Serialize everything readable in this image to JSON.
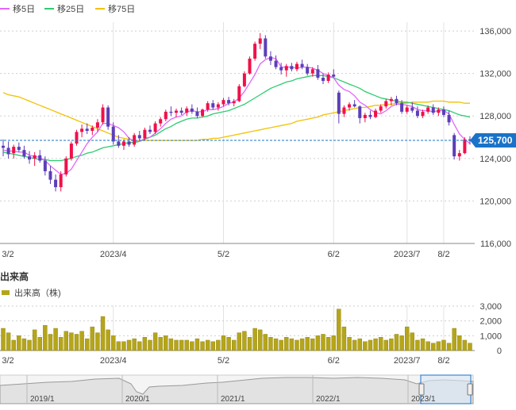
{
  "legend": {
    "items": [
      {
        "label": "移5日",
        "color": "#e066ff"
      },
      {
        "label": "移25日",
        "color": "#2ecc71"
      },
      {
        "label": "移75日",
        "color": "#f2c200"
      }
    ]
  },
  "colors": {
    "up": "#f0104a",
    "down": "#5b3fb8",
    "ma5": "#e066ff",
    "ma25": "#2ecc71",
    "ma75": "#f2c200",
    "volume": "#b5a51a",
    "last_price_tag": "#1a73c8",
    "navigator_line": "#888888",
    "navigator_selection": "#1a73c8"
  },
  "volume_section": {
    "title": "出来高",
    "legend_label": "出来高（株)"
  },
  "navigator": {
    "labels": [
      "2019/1",
      "2020/1",
      "2021/1",
      "2022/1",
      "2023/1"
    ]
  },
  "chart_data": [
    {
      "type": "candlestick",
      "price_axis_ticks": [
        "116,000",
        "120,000",
        "124,000",
        "128,000",
        "132,000",
        "136,000"
      ],
      "ylim": [
        116000,
        137200
      ],
      "x_tick_labels": [
        "3/2",
        "2023/4",
        "5/2",
        "6/2",
        "2023/7",
        "8/2"
      ],
      "last_price": 125700,
      "last_price_label": "125,700",
      "candles": [
        [
          125200,
          125800,
          124200,
          125000
        ],
        [
          125000,
          125600,
          124000,
          124400
        ],
        [
          124500,
          125300,
          124000,
          125100
        ],
        [
          125100,
          125500,
          124600,
          124800
        ],
        [
          124800,
          125200,
          124000,
          124200
        ],
        [
          124200,
          124700,
          123500,
          123900
        ],
        [
          124000,
          124600,
          123300,
          124300
        ],
        [
          124300,
          124800,
          123600,
          123800
        ],
        [
          123800,
          124200,
          122400,
          122800
        ],
        [
          122800,
          123300,
          121600,
          122000
        ],
        [
          122000,
          122500,
          120900,
          121300
        ],
        [
          121300,
          122800,
          120900,
          122500
        ],
        [
          122500,
          124200,
          122300,
          124000
        ],
        [
          124000,
          125600,
          123800,
          125400
        ],
        [
          125400,
          126700,
          125200,
          126500
        ],
        [
          126500,
          127200,
          126000,
          126800
        ],
        [
          126800,
          127300,
          126300,
          126600
        ],
        [
          126600,
          127100,
          126200,
          126900
        ],
        [
          126900,
          127700,
          126500,
          127400
        ],
        [
          127400,
          129100,
          127200,
          128800
        ],
        [
          128800,
          129000,
          126700,
          127000
        ],
        [
          127000,
          127400,
          125300,
          125600
        ],
        [
          125600,
          126200,
          125000,
          125200
        ],
        [
          125200,
          125800,
          124800,
          125600
        ],
        [
          125600,
          126000,
          125100,
          125300
        ],
        [
          125300,
          126400,
          125100,
          126200
        ],
        [
          126200,
          126600,
          125700,
          125900
        ],
        [
          125900,
          126900,
          125700,
          126700
        ],
        [
          126700,
          127100,
          126300,
          126500
        ],
        [
          126500,
          127500,
          126300,
          127300
        ],
        [
          127300,
          127900,
          127000,
          127700
        ],
        [
          127700,
          128600,
          127500,
          128400
        ],
        [
          128400,
          128900,
          128000,
          128300
        ],
        [
          128300,
          128700,
          127900,
          128500
        ],
        [
          128500,
          128800,
          128100,
          128300
        ],
        [
          128300,
          128900,
          128000,
          128700
        ],
        [
          128700,
          129100,
          128200,
          128400
        ],
        [
          128400,
          128800,
          127800,
          128000
        ],
        [
          128000,
          128700,
          127900,
          128600
        ],
        [
          128600,
          129400,
          128400,
          129200
        ],
        [
          129200,
          129500,
          128600,
          128800
        ],
        [
          128800,
          129300,
          128500,
          129100
        ],
        [
          129100,
          129700,
          128900,
          129500
        ],
        [
          129500,
          129800,
          129000,
          129200
        ],
        [
          129200,
          129600,
          128900,
          129400
        ],
        [
          129400,
          131000,
          129300,
          130800
        ],
        [
          130800,
          132200,
          130700,
          132000
        ],
        [
          132000,
          133600,
          131900,
          133400
        ],
        [
          133400,
          135000,
          133200,
          134800
        ],
        [
          134800,
          135800,
          134300,
          135300
        ],
        [
          135300,
          135600,
          133400,
          133600
        ],
        [
          133600,
          134100,
          132800,
          133200
        ],
        [
          133200,
          133700,
          132400,
          132600
        ],
        [
          132600,
          133000,
          131900,
          132300
        ],
        [
          132300,
          132900,
          131700,
          132700
        ],
        [
          132700,
          133000,
          132200,
          132400
        ],
        [
          132400,
          133100,
          132200,
          132900
        ],
        [
          132900,
          133300,
          132400,
          132600
        ],
        [
          132600,
          132900,
          131800,
          132000
        ],
        [
          132000,
          132600,
          131700,
          132400
        ],
        [
          132400,
          132800,
          131400,
          131600
        ],
        [
          131600,
          132000,
          131000,
          131300
        ],
        [
          131300,
          132100,
          131100,
          131900
        ],
        [
          131900,
          132400,
          131600,
          131700
        ],
        [
          130200,
          130400,
          127300,
          128200
        ],
        [
          128200,
          129000,
          127900,
          128800
        ],
        [
          128800,
          129300,
          128500,
          129100
        ],
        [
          129100,
          129500,
          128800,
          128900
        ],
        [
          128900,
          129000,
          127300,
          127800
        ],
        [
          127800,
          128300,
          127400,
          128100
        ],
        [
          128100,
          128500,
          127700,
          127900
        ],
        [
          127900,
          128700,
          127800,
          128500
        ],
        [
          128500,
          129100,
          128300,
          128900
        ],
        [
          128900,
          129600,
          128700,
          129400
        ],
        [
          129400,
          129800,
          129000,
          129600
        ],
        [
          129600,
          129900,
          129000,
          129200
        ],
        [
          129200,
          129500,
          128200,
          128400
        ],
        [
          128400,
          129000,
          128200,
          128800
        ],
        [
          128800,
          129300,
          128300,
          128500
        ],
        [
          128500,
          128900,
          127800,
          128000
        ],
        [
          128000,
          128600,
          127800,
          128400
        ],
        [
          128400,
          129000,
          128200,
          128800
        ],
        [
          128800,
          129100,
          128100,
          128300
        ],
        [
          128300,
          128800,
          128000,
          128600
        ],
        [
          128600,
          128900,
          127900,
          128100
        ],
        [
          128100,
          128500,
          127100,
          127400
        ],
        [
          126200,
          126400,
          123900,
          124200
        ],
        [
          124200,
          124800,
          123800,
          124500
        ],
        [
          124500,
          126000,
          124400,
          125800
        ],
        [
          125800,
          126100,
          125300,
          125700
        ]
      ],
      "ma5": [
        124800,
        124700,
        124700,
        124600,
        124600,
        124300,
        124200,
        124100,
        123800,
        123300,
        122900,
        122500,
        122600,
        123000,
        123800,
        124600,
        125400,
        126000,
        126500,
        127300,
        127300,
        127100,
        126900,
        126500,
        125900,
        125600,
        125600,
        125900,
        126000,
        126400,
        126800,
        127300,
        127700,
        127900,
        128000,
        128400,
        128500,
        128400,
        128400,
        128600,
        128600,
        128700,
        128900,
        129200,
        129300,
        129700,
        130300,
        131100,
        131900,
        132900,
        133300,
        133500,
        133400,
        132600,
        132600,
        132600,
        132500,
        132600,
        132600,
        132500,
        132300,
        132000,
        131800,
        131600,
        130900,
        130500,
        130300,
        129900,
        129300,
        129000,
        128600,
        128300,
        128200,
        128500,
        128900,
        129100,
        129100,
        129000,
        128900,
        128600,
        128500,
        128500,
        128400,
        128500,
        128500,
        128200,
        127200,
        126300,
        125800,
        125400
      ],
      "ma25": [
        124600,
        124500,
        124400,
        124300,
        124200,
        124100,
        124000,
        123900,
        123900,
        123800,
        123800,
        123800,
        123900,
        124000,
        124200,
        124300,
        124500,
        124600,
        124800,
        125000,
        125100,
        125200,
        125300,
        125400,
        125500,
        125500,
        125600,
        125800,
        126000,
        126200,
        126500,
        126800,
        127000,
        127300,
        127500,
        127700,
        127800,
        127800,
        127900,
        128000,
        128200,
        128300,
        128400,
        128500,
        128700,
        128900,
        129100,
        129400,
        129700,
        130000,
        130300,
        130600,
        130800,
        131000,
        131200,
        131300,
        131500,
        131600,
        131700,
        131800,
        131800,
        131800,
        131700,
        131600,
        131400,
        131200,
        131000,
        130800,
        130600,
        130300,
        130100,
        129900,
        129700,
        129600,
        129500,
        129400,
        129300,
        129300,
        129200,
        129100,
        129000,
        128900,
        128800,
        128700,
        128600,
        128500,
        128300,
        128100,
        128000,
        127900
      ],
      "ma75": [
        130200,
        130000,
        129900,
        129800,
        129600,
        129400,
        129200,
        129000,
        128800,
        128600,
        128400,
        128200,
        128000,
        127800,
        127600,
        127400,
        127200,
        127000,
        126800,
        126600,
        126400,
        126200,
        126000,
        125900,
        125800,
        125700,
        125700,
        125700,
        125700,
        125700,
        125700,
        125700,
        125700,
        125700,
        125700,
        125700,
        125700,
        125700,
        125800,
        125800,
        125900,
        125900,
        126000,
        126100,
        126200,
        126300,
        126400,
        126500,
        126600,
        126700,
        126800,
        126900,
        127000,
        127100,
        127200,
        127300,
        127500,
        127600,
        127700,
        127800,
        127900,
        128100,
        128200,
        128300,
        128400,
        128500,
        128600,
        128700,
        128800,
        128800,
        128900,
        129000,
        129000,
        129100,
        129100,
        129200,
        129200,
        129200,
        129300,
        129300,
        129300,
        129300,
        129400,
        129400,
        129400,
        129300,
        129300,
        129300,
        129200,
        129200
      ]
    },
    {
      "type": "bar",
      "name": "出来高（株)",
      "y_ticks": [
        "0",
        "1,000",
        "2,000",
        "3,000"
      ],
      "ylim": [
        0,
        3000
      ],
      "values": [
        1500,
        1200,
        700,
        1000,
        800,
        700,
        1400,
        900,
        1700,
        1100,
        1500,
        900,
        1300,
        1200,
        1100,
        1300,
        800,
        1600,
        1200,
        2300,
        1400,
        1000,
        600,
        600,
        700,
        800,
        600,
        900,
        700,
        1200,
        900,
        1000,
        800,
        700,
        700,
        700,
        600,
        800,
        600,
        700,
        600,
        700,
        1000,
        900,
        700,
        1200,
        1300,
        900,
        1500,
        1400,
        1100,
        900,
        800,
        700,
        900,
        800,
        700,
        800,
        900,
        800,
        1000,
        1100,
        900,
        1000,
        2800,
        1600,
        900,
        700,
        800,
        600,
        700,
        800,
        900,
        700,
        800,
        1100,
        1000,
        1600,
        1200,
        700,
        800,
        600,
        500,
        600,
        700,
        500,
        1500,
        1000,
        700,
        500
      ]
    }
  ]
}
